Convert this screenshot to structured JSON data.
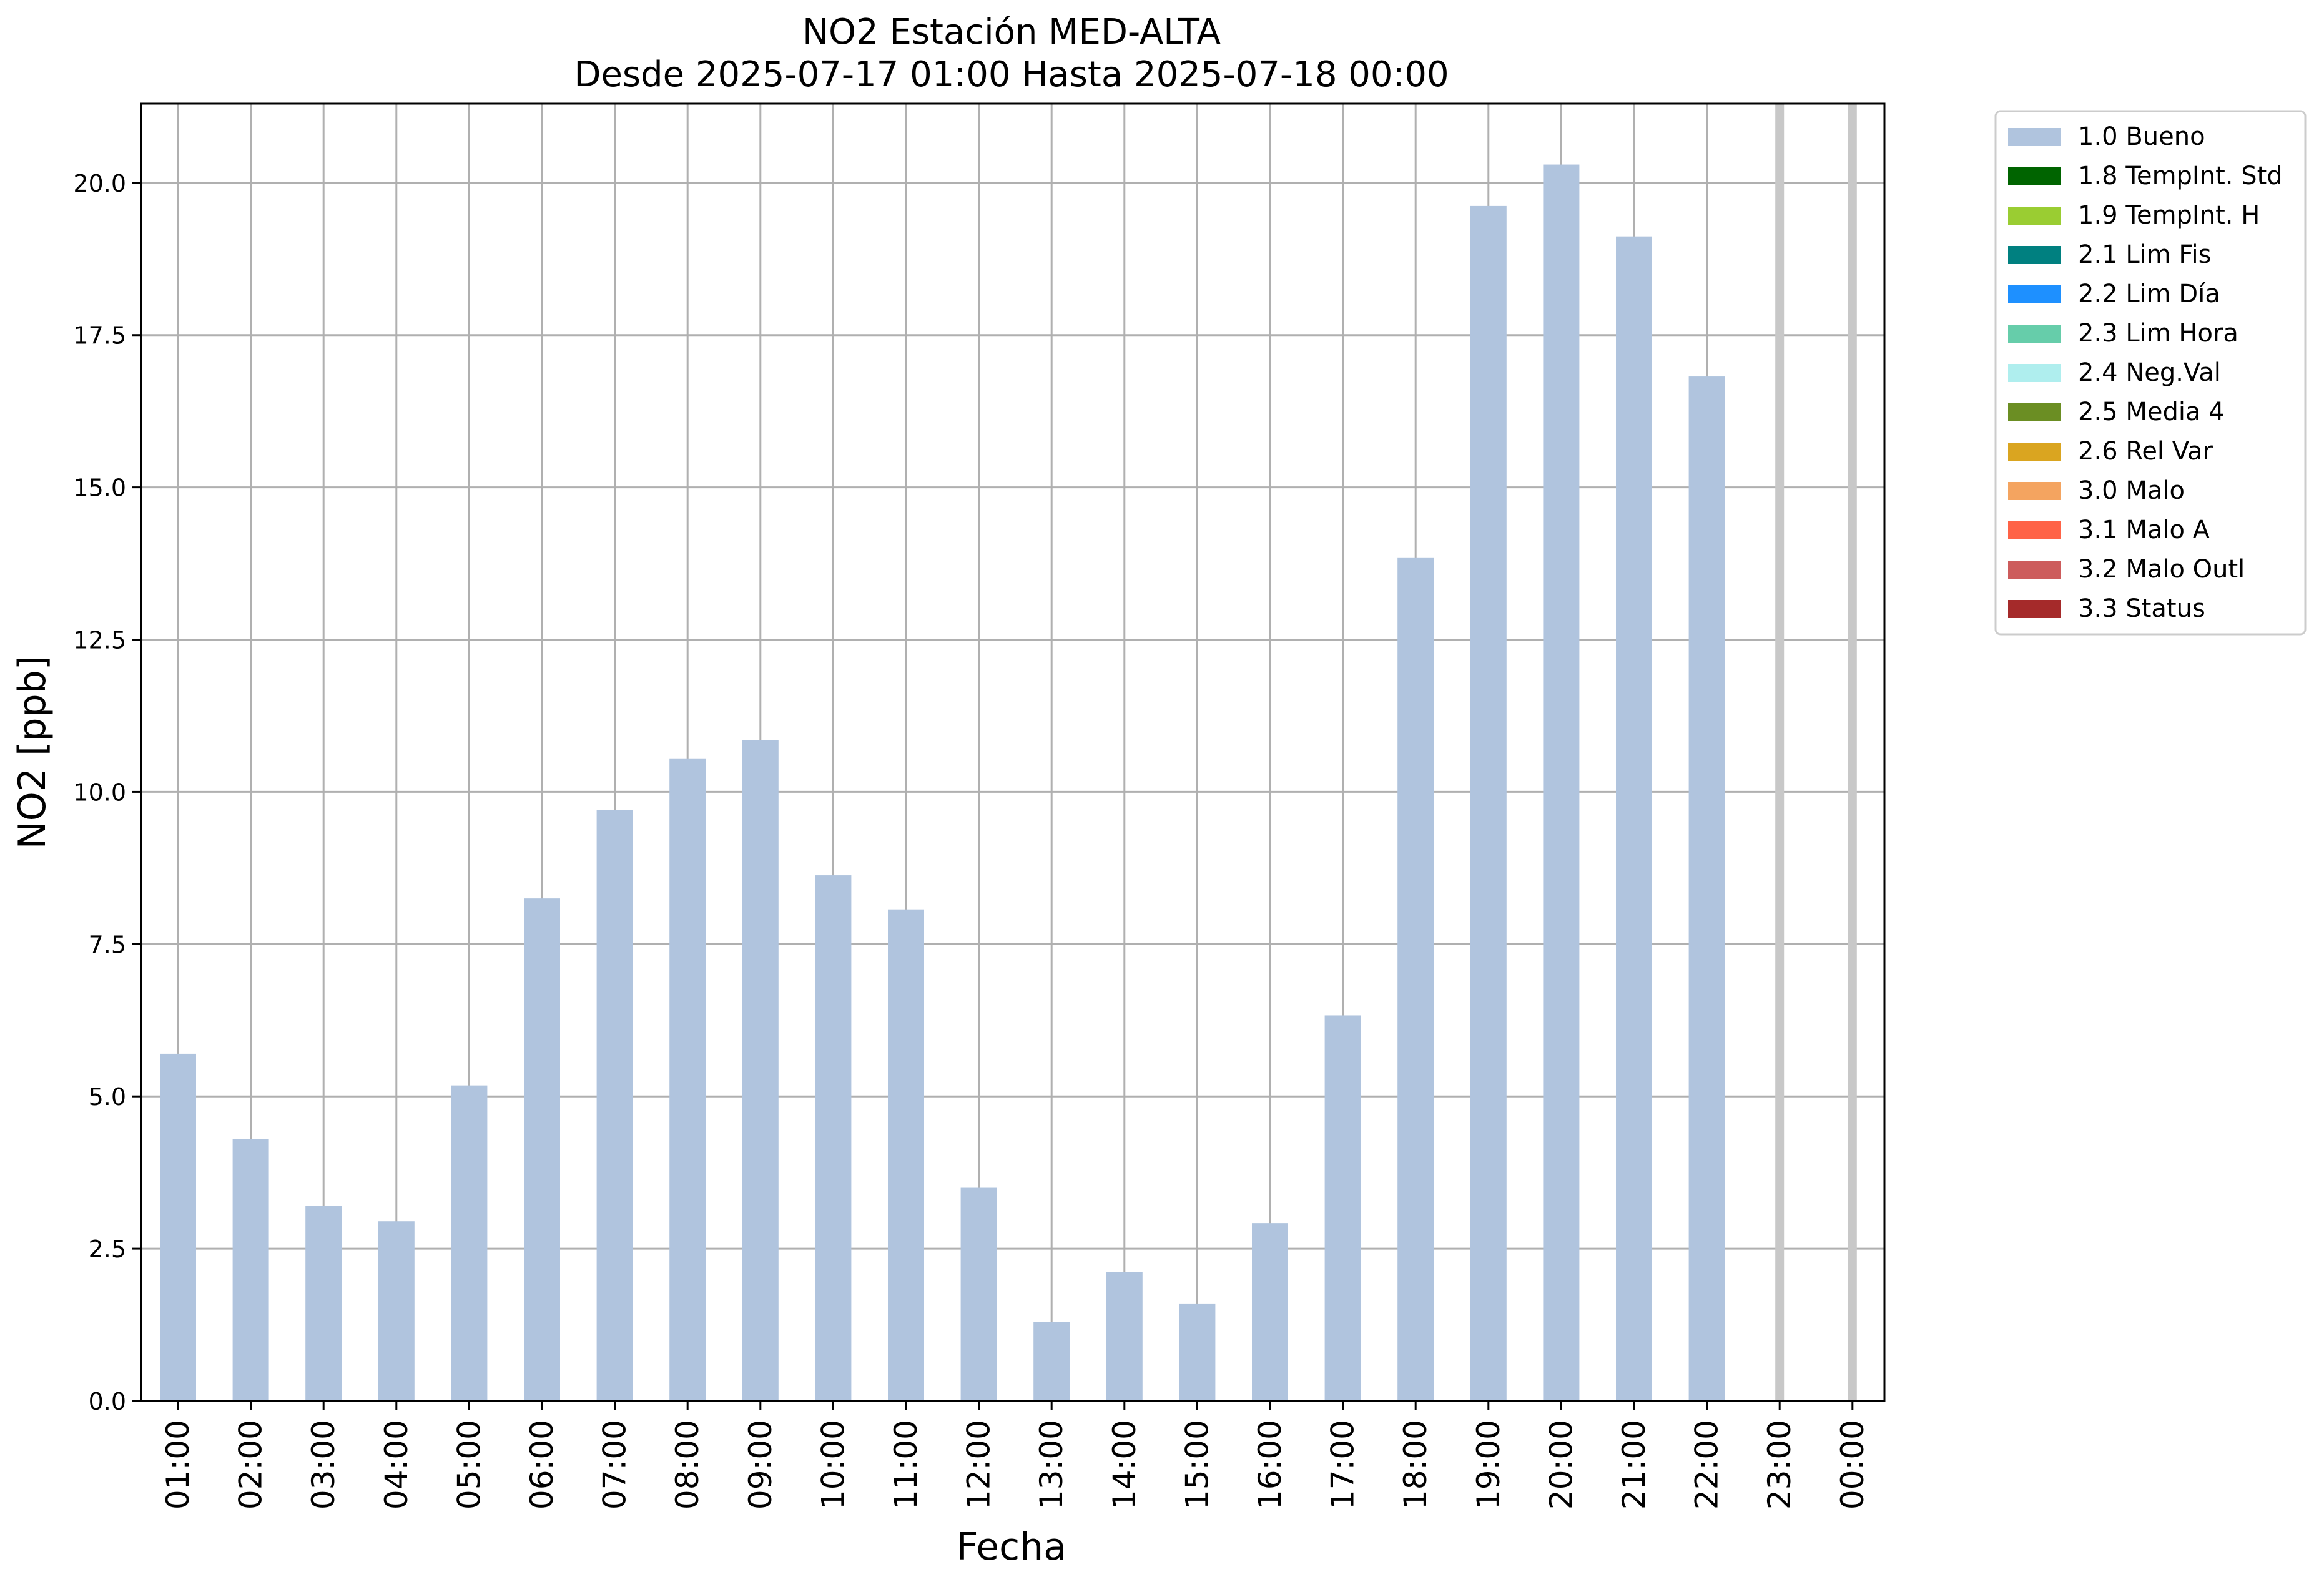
{
  "chart_data": {
    "type": "bar",
    "title": "NO2 Estación MED-ALTA",
    "subtitle": "Desde 2025-07-17 01:00 Hasta 2025-07-18 00:00",
    "xlabel": "Fecha",
    "ylabel": "NO2 [ppb]",
    "categories": [
      "01:00",
      "02:00",
      "03:00",
      "04:00",
      "05:00",
      "06:00",
      "07:00",
      "08:00",
      "09:00",
      "10:00",
      "11:00",
      "12:00",
      "13:00",
      "14:00",
      "15:00",
      "16:00",
      "17:00",
      "18:00",
      "19:00",
      "20:00",
      "21:00",
      "22:00",
      "23:00",
      "00:00"
    ],
    "series": [
      {
        "name": "1.0 Bueno",
        "color": "#b0c4de",
        "values": [
          5.7,
          4.3,
          3.2,
          2.95,
          5.18,
          8.25,
          9.7,
          10.55,
          10.85,
          8.63,
          8.07,
          3.5,
          1.3,
          2.12,
          1.6,
          2.92,
          6.33,
          13.85,
          19.62,
          20.3,
          19.12,
          16.82,
          null,
          null
        ]
      }
    ],
    "missing_markers": [
      "23:00",
      "00:00"
    ],
    "ylim": [
      0,
      21.3
    ],
    "yticks": [
      "0.0",
      "2.5",
      "5.0",
      "7.5",
      "10.0",
      "12.5",
      "15.0",
      "17.5",
      "20.0"
    ],
    "grid": true,
    "legend_position": "outside-top-right",
    "legend": [
      {
        "label": "1.0 Bueno",
        "color": "#b0c4de"
      },
      {
        "label": "1.8 TempInt. Std",
        "color": "#006400"
      },
      {
        "label": "1.9 TempInt. H",
        "color": "#9acd32"
      },
      {
        "label": "2.1 Lim Fis",
        "color": "#008080"
      },
      {
        "label": "2.2 Lim Día",
        "color": "#1e90ff"
      },
      {
        "label": "2.3 Lim Hora",
        "color": "#66cdaa"
      },
      {
        "label": "2.4 Neg.Val",
        "color": "#afeeee"
      },
      {
        "label": "2.5 Media 4",
        "color": "#6b8e23"
      },
      {
        "label": "2.6 Rel Var",
        "color": "#daa520"
      },
      {
        "label": "3.0 Malo",
        "color": "#f4a460"
      },
      {
        "label": "3.1 Malo A",
        "color": "#ff6347"
      },
      {
        "label": "3.2 Malo Outl",
        "color": "#cd5c5c"
      },
      {
        "label": "3.3 Status",
        "color": "#a52a2a"
      }
    ]
  }
}
